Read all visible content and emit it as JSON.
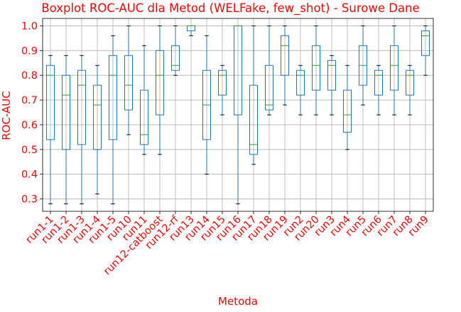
{
  "colors": {
    "text": "#ff0000",
    "box": "#1f77b4",
    "median": "#2ca02c",
    "cap": "#000000",
    "grid": "#b0b0b0"
  },
  "chart_data": {
    "type": "boxplot",
    "title": "Boxplot ROC-AUC dla Metod (WELFake, few_shot) - Surowe Dane",
    "xlabel": "Metoda",
    "ylabel": "ROC-AUC",
    "ylim": [
      0.25,
      1.03
    ],
    "yticks": [
      "0.3",
      "0.4",
      "0.5",
      "0.6",
      "0.7",
      "0.8",
      "0.9",
      "1.0"
    ],
    "grid": true,
    "categories": [
      "run1-1",
      "run1-2",
      "run1-3",
      "run1-4",
      "run1-5",
      "run10",
      "run11",
      "run12-catboost",
      "run12-rf",
      "run13",
      "run14",
      "run15",
      "run16",
      "run17",
      "run18",
      "run19",
      "run2",
      "run20",
      "run3",
      "run4",
      "run5",
      "run6",
      "run7",
      "run8",
      "run9"
    ],
    "boxes": [
      {
        "min": 0.28,
        "q1": 0.54,
        "median": 0.8,
        "q3": 0.84,
        "max": 0.88
      },
      {
        "min": 0.28,
        "q1": 0.5,
        "median": 0.72,
        "q3": 0.8,
        "max": 0.88
      },
      {
        "min": 0.28,
        "q1": 0.52,
        "median": 0.76,
        "q3": 0.82,
        "max": 0.88
      },
      {
        "min": 0.32,
        "q1": 0.5,
        "median": 0.68,
        "q3": 0.76,
        "max": 0.84
      },
      {
        "min": 0.28,
        "q1": 0.54,
        "median": 0.8,
        "q3": 0.88,
        "max": 0.96
      },
      {
        "min": 0.56,
        "q1": 0.66,
        "median": 0.76,
        "q3": 0.88,
        "max": 1.0
      },
      {
        "min": 0.48,
        "q1": 0.52,
        "median": 0.56,
        "q3": 0.74,
        "max": 0.92
      },
      {
        "min": 0.48,
        "q1": 0.64,
        "median": 0.8,
        "q3": 0.9,
        "max": 1.0
      },
      {
        "min": 0.8,
        "q1": 0.82,
        "median": 0.84,
        "q3": 0.92,
        "max": 1.0
      },
      {
        "min": 0.96,
        "q1": 0.98,
        "median": 1.0,
        "q3": 1.0,
        "max": 1.0
      },
      {
        "min": 0.4,
        "q1": 0.54,
        "median": 0.68,
        "q3": 0.82,
        "max": 0.96
      },
      {
        "min": 0.64,
        "q1": 0.72,
        "median": 0.8,
        "q3": 0.82,
        "max": 0.84
      },
      {
        "min": 0.28,
        "q1": 0.64,
        "median": 1.0,
        "q3": 1.0,
        "max": 1.0
      },
      {
        "min": 0.44,
        "q1": 0.48,
        "median": 0.52,
        "q3": 0.76,
        "max": 1.0
      },
      {
        "min": 0.64,
        "q1": 0.66,
        "median": 0.68,
        "q3": 0.84,
        "max": 1.0
      },
      {
        "min": 0.68,
        "q1": 0.8,
        "median": 0.92,
        "q3": 0.96,
        "max": 1.0
      },
      {
        "min": 0.64,
        "q1": 0.72,
        "median": 0.8,
        "q3": 0.82,
        "max": 0.84
      },
      {
        "min": 0.64,
        "q1": 0.74,
        "median": 0.84,
        "q3": 0.92,
        "max": 1.0
      },
      {
        "min": 0.64,
        "q1": 0.74,
        "median": 0.84,
        "q3": 0.86,
        "max": 0.88
      },
      {
        "min": 0.5,
        "q1": 0.57,
        "median": 0.64,
        "q3": 0.74,
        "max": 0.84
      },
      {
        "min": 0.68,
        "q1": 0.76,
        "median": 0.84,
        "q3": 0.92,
        "max": 1.0
      },
      {
        "min": 0.64,
        "q1": 0.72,
        "median": 0.8,
        "q3": 0.82,
        "max": 0.84
      },
      {
        "min": 0.64,
        "q1": 0.74,
        "median": 0.84,
        "q3": 0.92,
        "max": 1.0
      },
      {
        "min": 0.64,
        "q1": 0.72,
        "median": 0.8,
        "q3": 0.82,
        "max": 0.84
      },
      {
        "min": 0.8,
        "q1": 0.88,
        "median": 0.96,
        "q3": 0.98,
        "max": 1.0
      }
    ]
  }
}
